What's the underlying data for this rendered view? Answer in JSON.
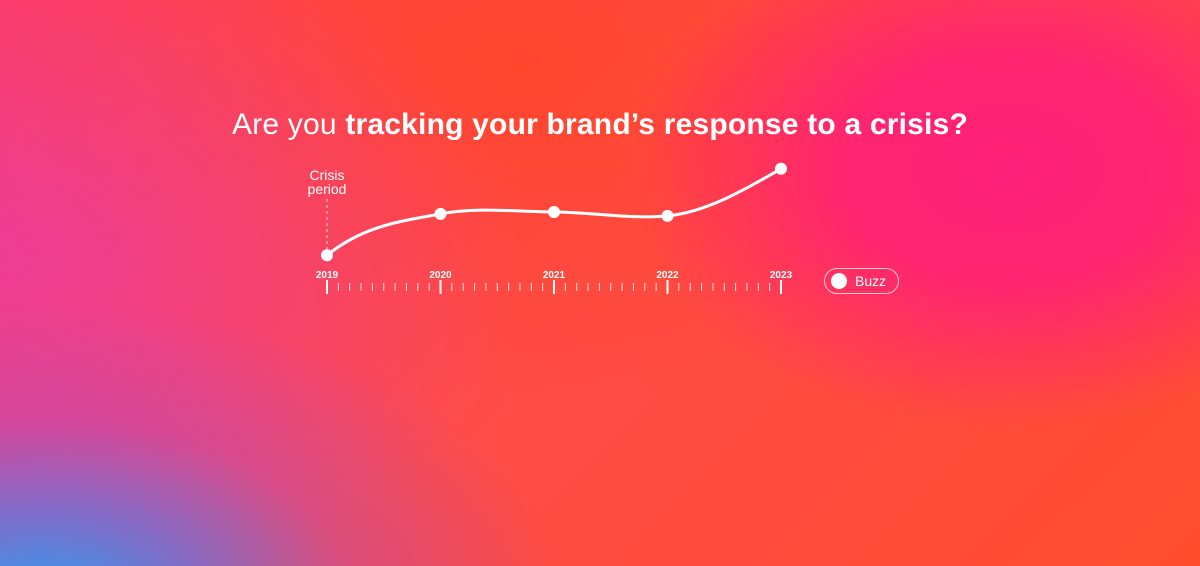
{
  "headline": {
    "light": "Are you",
    "bold": "tracking your brand’s response to a crisis?"
  },
  "annotation": {
    "line1": "Crisis",
    "line2": "period",
    "x": "2019"
  },
  "legend": {
    "label": "Buzz",
    "color": "#ffffff"
  },
  "chart_data": {
    "type": "line",
    "title": "",
    "xlabel": "",
    "ylabel": "",
    "categories": [
      "2019",
      "2020",
      "2021",
      "2022",
      "2023"
    ],
    "series": [
      {
        "name": "Buzz",
        "values": [
          0.05,
          0.48,
          0.5,
          0.46,
          0.95
        ]
      }
    ],
    "ylim": [
      0,
      1
    ],
    "y_axis_shown": false,
    "grid": false,
    "minor_ticks_per_interval": 10,
    "legend_position": "right",
    "line_color": "#ffffff"
  }
}
